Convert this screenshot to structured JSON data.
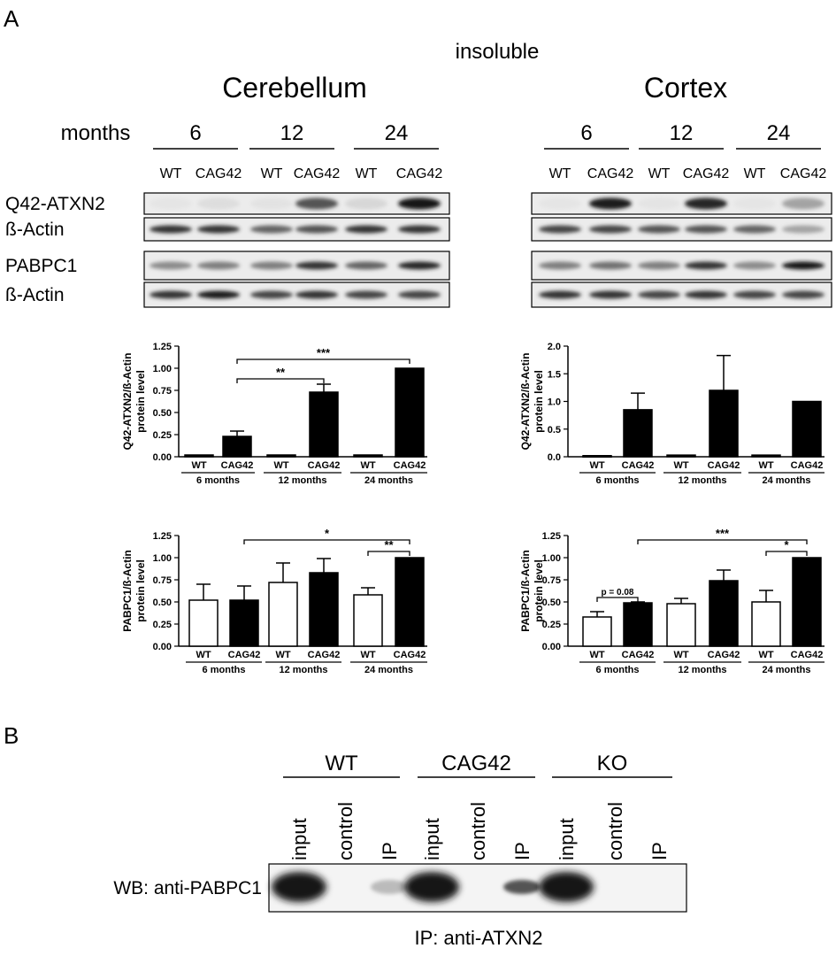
{
  "panels": {
    "a_label": "A",
    "b_label": "B"
  },
  "panel_a": {
    "fraction": "insoluble",
    "regions": [
      {
        "name": "Cerebellum",
        "months_label": "months",
        "timepoints": [
          "6",
          "12",
          "24"
        ],
        "lane_labels": [
          "WT",
          "CAG42",
          "WT",
          "CAG42",
          "WT",
          "CAG42"
        ],
        "blots": [
          {
            "label": "Q42-ATXN2",
            "lane_intensity": [
              0.02,
              0.1,
              0.05,
              0.75,
              0.15,
              1.0
            ]
          },
          {
            "label": "ß-Actin",
            "lane_intensity": [
              0.85,
              0.85,
              0.7,
              0.75,
              0.85,
              0.85
            ]
          },
          {
            "label": "PABPC1",
            "lane_intensity": [
              0.55,
              0.6,
              0.6,
              0.85,
              0.7,
              0.9
            ]
          },
          {
            "label": "ß-Actin",
            "lane_intensity": [
              0.85,
              0.95,
              0.8,
              0.85,
              0.8,
              0.8
            ]
          }
        ]
      },
      {
        "name": "Cortex",
        "months_label": "",
        "timepoints": [
          "6",
          "12",
          "24"
        ],
        "lane_labels": [
          "WT",
          "CAG42",
          "WT",
          "CAG42",
          "WT",
          "CAG42"
        ],
        "blots": [
          {
            "label": "",
            "lane_intensity": [
              0.02,
              0.95,
              0.03,
              0.9,
              0.02,
              0.45
            ]
          },
          {
            "label": "",
            "lane_intensity": [
              0.8,
              0.8,
              0.75,
              0.75,
              0.7,
              0.45
            ]
          },
          {
            "label": "",
            "lane_intensity": [
              0.6,
              0.65,
              0.6,
              0.85,
              0.55,
              1.0
            ]
          },
          {
            "label": "",
            "lane_intensity": [
              0.85,
              0.85,
              0.8,
              0.85,
              0.8,
              0.8
            ]
          }
        ]
      }
    ]
  },
  "chart_data": [
    {
      "type": "bar",
      "ylabel": "Q42-ATXN2/ß-Actin protein level",
      "categories": [
        "WT",
        "CAG42",
        "WT",
        "CAG42",
        "WT",
        "CAG42"
      ],
      "groups": [
        "6 months",
        "12 months",
        "24 months"
      ],
      "values": [
        0.02,
        0.23,
        0.02,
        0.73,
        0.02,
        1.0
      ],
      "errors": [
        0.0,
        0.06,
        0.0,
        0.09,
        0.0,
        0.0
      ],
      "fills": [
        "#000000",
        "#000000",
        "#000000",
        "#000000",
        "#000000",
        "#000000"
      ],
      "ylim": [
        0,
        1.25
      ],
      "yticks": [
        "0.00",
        "0.25",
        "0.50",
        "0.75",
        "1.00",
        "1.25"
      ],
      "significance": [
        {
          "from": 1,
          "to": 3,
          "label": "**",
          "y": 0.88
        },
        {
          "from": 1,
          "to": 5,
          "label": "***",
          "y": 1.1
        }
      ]
    },
    {
      "type": "bar",
      "ylabel": "Q42-ATXN2/ß-Actin protein level",
      "categories": [
        "WT",
        "CAG42",
        "WT",
        "CAG42",
        "WT",
        "CAG42"
      ],
      "groups": [
        "6 months",
        "12 months",
        "24 months"
      ],
      "values": [
        0.02,
        0.85,
        0.03,
        1.2,
        0.03,
        1.0
      ],
      "errors": [
        0.0,
        0.3,
        0.0,
        0.63,
        0.0,
        0.0
      ],
      "fills": [
        "#000000",
        "#000000",
        "#000000",
        "#000000",
        "#000000",
        "#000000"
      ],
      "ylim": [
        0,
        2.0
      ],
      "yticks": [
        "0.0",
        "0.5",
        "1.0",
        "1.5",
        "2.0"
      ],
      "significance": []
    },
    {
      "type": "bar",
      "ylabel": "PABPC1/ß-Actin protein level",
      "categories": [
        "WT",
        "CAG42",
        "WT",
        "CAG42",
        "WT",
        "CAG42"
      ],
      "groups": [
        "6 months",
        "12 months",
        "24 months"
      ],
      "values": [
        0.52,
        0.52,
        0.72,
        0.83,
        0.58,
        1.0
      ],
      "errors": [
        0.18,
        0.16,
        0.22,
        0.16,
        0.08,
        0.0
      ],
      "fills": [
        "#ffffff",
        "#000000",
        "#ffffff",
        "#000000",
        "#ffffff",
        "#000000"
      ],
      "ylim": [
        0,
        1.25
      ],
      "yticks": [
        "0.00",
        "0.25",
        "0.50",
        "0.75",
        "1.00",
        "1.25"
      ],
      "significance": [
        {
          "from": 4,
          "to": 5,
          "label": "**",
          "y": 1.07
        },
        {
          "from": 1,
          "to": 5,
          "label": "*",
          "y": 1.2
        }
      ]
    },
    {
      "type": "bar",
      "ylabel": "PABPC1/ß-Actin protein level",
      "categories": [
        "WT",
        "CAG42",
        "WT",
        "CAG42",
        "WT",
        "CAG42"
      ],
      "groups": [
        "6 months",
        "12 months",
        "24 months"
      ],
      "values": [
        0.33,
        0.49,
        0.48,
        0.74,
        0.5,
        1.0
      ],
      "errors": [
        0.06,
        0.01,
        0.06,
        0.12,
        0.13,
        0.0
      ],
      "fills": [
        "#ffffff",
        "#000000",
        "#ffffff",
        "#000000",
        "#ffffff",
        "#000000"
      ],
      "ylim": [
        0,
        1.25
      ],
      "yticks": [
        "0.00",
        "0.25",
        "0.50",
        "0.75",
        "1.00",
        "1.25"
      ],
      "significance": [
        {
          "from": 0,
          "to": 1,
          "label": "p = 0.08",
          "y": 0.55
        },
        {
          "from": 4,
          "to": 5,
          "label": "*",
          "y": 1.07
        },
        {
          "from": 1,
          "to": 5,
          "label": "***",
          "y": 1.2
        }
      ]
    }
  ],
  "panel_b": {
    "groups": [
      "WT",
      "CAG42",
      "KO"
    ],
    "lanes": [
      "input",
      "control",
      "IP",
      "input",
      "control",
      "IP",
      "input",
      "control",
      "IP"
    ],
    "lane_intensity": [
      1.0,
      0.0,
      0.35,
      1.0,
      0.0,
      0.75,
      1.0,
      0.0,
      0.0
    ],
    "wb_label": "WB: anti-PABPC1",
    "ip_label": "IP: anti-ATXN2"
  }
}
